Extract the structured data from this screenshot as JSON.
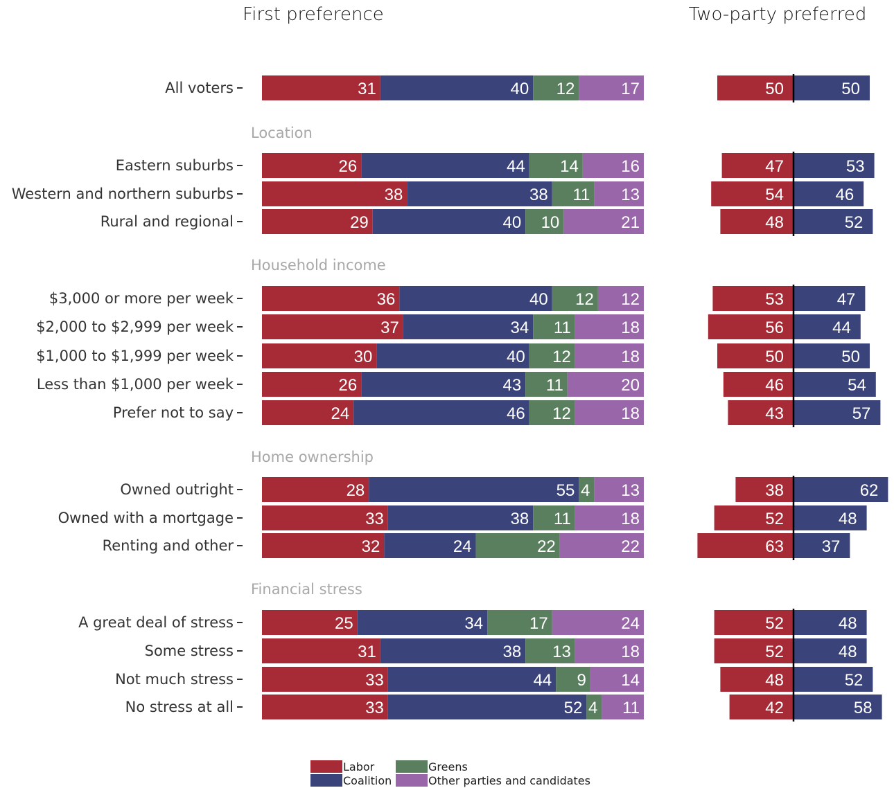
{
  "chart_data": {
    "type": "bar",
    "subtype": "stacked-horizontal",
    "panels": [
      "First preference",
      "Two-party preferred"
    ],
    "colors": {
      "Labor": "#a62b36",
      "Coalition": "#3a437a",
      "Greens": "#5a7f5f",
      "Other parties and candidates": "#9a66aa"
    },
    "legend": {
      "position": "bottom",
      "items": [
        "Labor",
        "Coalition",
        "Greens",
        "Other parties and candidates"
      ]
    },
    "rows": [
      {
        "group": "",
        "label": "All voters",
        "first_pref": [
          31,
          40,
          12,
          17
        ],
        "tpp": [
          50,
          50
        ]
      },
      {
        "group": "Location",
        "label": "Eastern suburbs",
        "first_pref": [
          26,
          44,
          14,
          16
        ],
        "tpp": [
          47,
          53
        ]
      },
      {
        "group": "Location",
        "label": "Western and northern suburbs",
        "first_pref": [
          38,
          38,
          11,
          13
        ],
        "tpp": [
          54,
          46
        ]
      },
      {
        "group": "Location",
        "label": "Rural and regional",
        "first_pref": [
          29,
          40,
          10,
          21
        ],
        "tpp": [
          48,
          52
        ]
      },
      {
        "group": "Household income",
        "label": "$3,000 or more per week",
        "first_pref": [
          36,
          40,
          12,
          12
        ],
        "tpp": [
          53,
          47
        ]
      },
      {
        "group": "Household income",
        "label": "$2,000 to $2,999 per week",
        "first_pref": [
          37,
          34,
          11,
          18
        ],
        "tpp": [
          56,
          44
        ]
      },
      {
        "group": "Household income",
        "label": "$1,000 to $1,999 per week",
        "first_pref": [
          30,
          40,
          12,
          18
        ],
        "tpp": [
          50,
          50
        ]
      },
      {
        "group": "Household income",
        "label": "Less than $1,000 per week",
        "first_pref": [
          26,
          43,
          11,
          20
        ],
        "tpp": [
          46,
          54
        ]
      },
      {
        "group": "Household income",
        "label": "Prefer not to say",
        "first_pref": [
          24,
          46,
          12,
          18
        ],
        "tpp": [
          43,
          57
        ]
      },
      {
        "group": "Home ownership",
        "label": "Owned outright",
        "first_pref": [
          28,
          55,
          4,
          13
        ],
        "tpp": [
          38,
          62
        ]
      },
      {
        "group": "Home ownership",
        "label": "Owned with a mortgage",
        "first_pref": [
          33,
          38,
          11,
          18
        ],
        "tpp": [
          52,
          48
        ]
      },
      {
        "group": "Home ownership",
        "label": "Renting and other",
        "first_pref": [
          32,
          24,
          22,
          22
        ],
        "tpp": [
          63,
          37
        ]
      },
      {
        "group": "Financial stress",
        "label": "A great deal of stress",
        "first_pref": [
          25,
          34,
          17,
          24
        ],
        "tpp": [
          52,
          48
        ]
      },
      {
        "group": "Financial stress",
        "label": "Some stress",
        "first_pref": [
          31,
          38,
          13,
          18
        ],
        "tpp": [
          52,
          48
        ]
      },
      {
        "group": "Financial stress",
        "label": "Not much stress",
        "first_pref": [
          33,
          44,
          9,
          14
        ],
        "tpp": [
          48,
          52
        ]
      },
      {
        "group": "Financial stress",
        "label": "No stress at all",
        "first_pref": [
          33,
          52,
          4,
          11
        ],
        "tpp": [
          42,
          58
        ]
      }
    ]
  }
}
